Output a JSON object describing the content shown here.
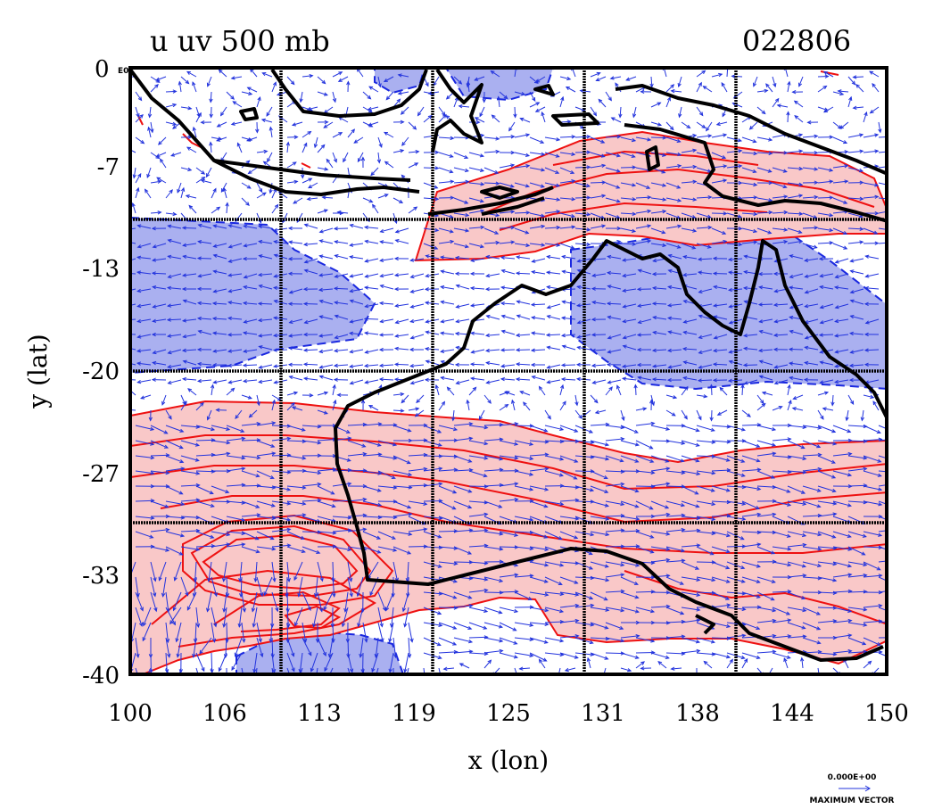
{
  "title_left": "u uv 500 mb",
  "title_right": "022806",
  "origin_label": "0",
  "origin_sub": "E0",
  "x_axis": {
    "label": "x (lon)",
    "ticks": [
      "100",
      "106",
      "113",
      "119",
      "125",
      "131",
      "138",
      "144",
      "150"
    ],
    "range": [
      100,
      150
    ]
  },
  "y_axis": {
    "label": "y (lat)",
    "ticks": [
      "-7",
      "-13",
      "-20",
      "-27",
      "-33",
      "-40"
    ],
    "range": [
      -40,
      0
    ]
  },
  "legend": {
    "value": "0.000E+00",
    "caption": "MAXIMUM VECTOR"
  },
  "colors": {
    "positive_fill": "#f9c8c8",
    "positive_line": "#ee1111",
    "negative_fill": "#aab0f0",
    "negative_line": "#1a28e0",
    "coast": "#000000",
    "vectors": "#2233dd"
  }
}
